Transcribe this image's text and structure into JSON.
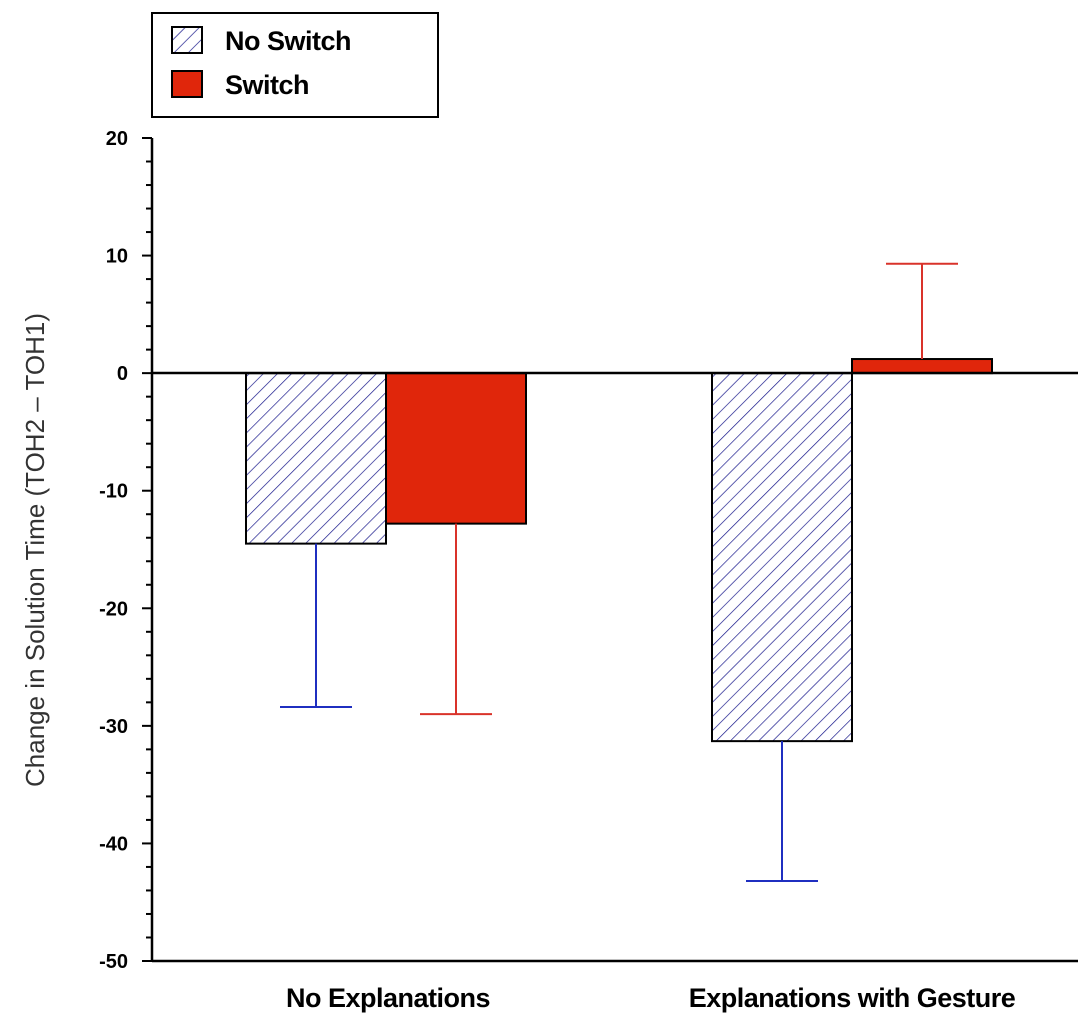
{
  "chart_data": {
    "type": "bar",
    "categories": [
      "No Explanations",
      "Explanations with Gesture"
    ],
    "series": [
      {
        "name": "No Switch",
        "pattern": "hatch",
        "color": "#1a1a8c",
        "error_color": "#1f2fc0",
        "values": [
          -14.5,
          -31.3
        ],
        "error_low": [
          -28.4,
          -43.2
        ]
      },
      {
        "name": "Switch",
        "pattern": "solid",
        "color": "#e0260b",
        "error_color": "#d9322a",
        "values": [
          -12.8,
          1.2
        ],
        "error_high": [
          null,
          9.3
        ],
        "error_low": [
          -29.0,
          null
        ]
      }
    ],
    "ylabel": "Change in Solution Time (TOH2 – TOH1)",
    "xlabel": "",
    "ylim": [
      -50,
      20
    ],
    "yticks": [
      "20",
      "10",
      "0",
      "-10",
      "-20",
      "-30",
      "-40",
      "-50"
    ],
    "legend_placement": "top-left",
    "grid": false
  }
}
